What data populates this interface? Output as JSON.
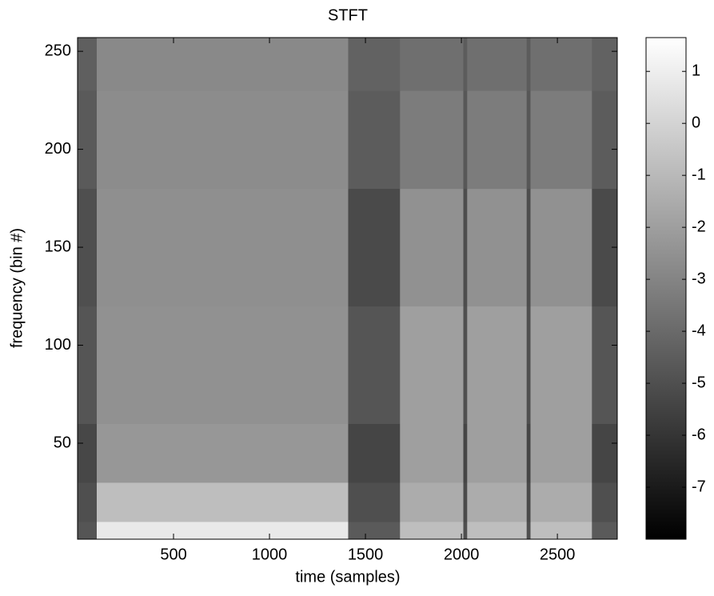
{
  "chart_data": {
    "type": "heatmap",
    "title": "STFT",
    "x_label": "time (samples)",
    "y_label": "frequency (bin #)",
    "x_edges": [
      0,
      100,
      1410,
      1680,
      2010,
      2030,
      2340,
      2360,
      2680,
      2812
    ],
    "y_edges": [
      1,
      10,
      30,
      60,
      120,
      180,
      230,
      257
    ],
    "z": [
      [
        -4.8,
        0.8,
        -4.6,
        -0.8,
        -5.0,
        -0.8,
        -5.0,
        -0.8,
        -4.6
      ],
      [
        -5.0,
        -0.8,
        -5.0,
        -1.5,
        -5.2,
        -1.5,
        -5.2,
        -1.5,
        -5.0
      ],
      [
        -5.3,
        -2.3,
        -5.4,
        -2.0,
        -5.4,
        -2.0,
        -5.4,
        -2.0,
        -5.4
      ],
      [
        -4.8,
        -2.5,
        -4.8,
        -2.0,
        -5.0,
        -2.0,
        -5.0,
        -2.0,
        -4.8
      ],
      [
        -5.0,
        -2.6,
        -5.2,
        -2.5,
        -5.1,
        -2.5,
        -5.1,
        -2.5,
        -5.2
      ],
      [
        -4.6,
        -2.7,
        -4.5,
        -3.3,
        -4.7,
        -3.3,
        -4.7,
        -3.3,
        -4.5
      ],
      [
        -4.4,
        -2.8,
        -4.3,
        -3.8,
        -4.5,
        -3.8,
        -4.5,
        -3.8,
        -4.3
      ]
    ],
    "xlim": [
      0,
      2812
    ],
    "ylim": [
      1,
      257
    ],
    "xticks": [
      500,
      1000,
      1500,
      2000,
      2500
    ],
    "yticks": [
      50,
      100,
      150,
      200,
      250
    ],
    "clim": [
      -8,
      1.65
    ],
    "cticks": [
      1,
      0,
      -1,
      -2,
      -3,
      -4,
      -5,
      -6,
      -7
    ],
    "colormap": "gray"
  }
}
